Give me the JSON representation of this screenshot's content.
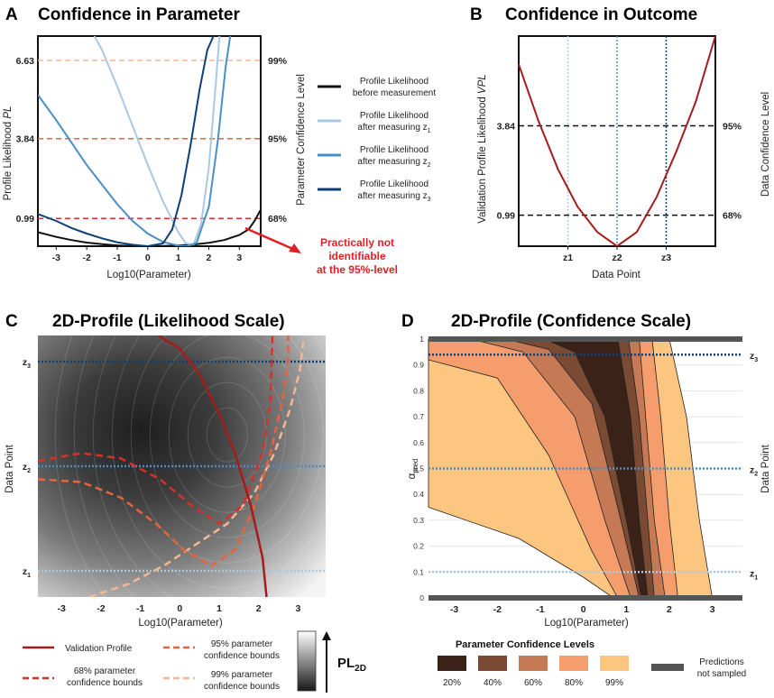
{
  "figure": {
    "width": 858,
    "height": 774
  },
  "panels": {
    "A": {
      "letter": "A",
      "title": "Confidence in Parameter",
      "ylabel": "Profile Likelihood ",
      "ylabel_italic": "PL",
      "ylabel_right": "Parameter Confidence Level",
      "xlabel": "Log10(Parameter)"
    },
    "B": {
      "letter": "B",
      "title": "Confidence in Outcome",
      "ylabel": "Validation Profile Likelihood ",
      "ylabel_italic": "VPL",
      "ylabel_right": "Data Confidence Level",
      "xlabel": "Data Point"
    },
    "C": {
      "letter": "C",
      "title": "2D-Profile (Likelihood Scale)",
      "ylabel": "Data Point",
      "xlabel": "Log10(Parameter)"
    },
    "D": {
      "letter": "D",
      "title": "2D-Profile (Confidence Scale)",
      "ylabel": "α",
      "ylabel_sub": "pred",
      "ylabel_right": "Data Point",
      "xlabel": "Log10(Parameter)"
    }
  },
  "annotation": {
    "line1": "Practically not",
    "line2": "identifiable",
    "line3": "at the 95%-level"
  },
  "legend_A": [
    {
      "line1": "Profile Likelihood",
      "line2": "before measurement",
      "sub": "",
      "color": "#111111"
    },
    {
      "line1": "Profile Likelihood",
      "line2": "after measuring z",
      "sub": "1",
      "color": "#a9c8e2"
    },
    {
      "line1": "Profile Likelihood",
      "line2": "after measuring z",
      "sub": "2",
      "color": "#4a8fc4"
    },
    {
      "line1": "Profile Likelihood",
      "line2": "after measuring z",
      "sub": "3",
      "color": "#0d3f78"
    }
  ],
  "legend_C": {
    "validation": "Validation Profile",
    "b68_line1": "68% parameter",
    "b68_line2": "confidence bounds",
    "b95_line1": "95% parameter",
    "b95_line2": "confidence bounds",
    "b99_line1": "99% parameter",
    "b99_line2": "confidence bounds",
    "pl": "PL",
    "pl_sub": "2D"
  },
  "legend_D": {
    "title": "Parameter Confidence Levels",
    "levels": [
      {
        "label": "20%",
        "color": "#3b2218"
      },
      {
        "label": "40%",
        "color": "#7a4a33"
      },
      {
        "label": "60%",
        "color": "#c57a55"
      },
      {
        "label": "80%",
        "color": "#f59d6c"
      },
      {
        "label": "99%",
        "color": "#fcc681"
      }
    ],
    "not_sampled_line1": "Predictions",
    "not_sampled_line2": "not sampled",
    "not_sampled_color": "#555555"
  },
  "chart_data": [
    {
      "panel": "A",
      "type": "line",
      "title": "Confidence in Parameter",
      "xlabel": "Log10(Parameter)",
      "ylabel": "Profile Likelihood PL",
      "xlim": [
        -3.6,
        3.7
      ],
      "ylim": [
        0,
        7.5
      ],
      "x_ticks": [
        -3,
        -2,
        -1,
        0,
        1,
        2,
        3
      ],
      "y_ticks": [
        0.99,
        3.84,
        6.63
      ],
      "y_tick_labels": [
        "0.99",
        "3.84",
        "6.63"
      ],
      "y_right_labels": [
        "68%",
        "95%",
        "99%"
      ],
      "thresholds": [
        {
          "y": 0.99,
          "color": "#d7302a"
        },
        {
          "y": 3.84,
          "color": "#e8633c"
        },
        {
          "y": 6.63,
          "color": "#f4b795"
        }
      ],
      "series": [
        {
          "name": "Profile Likelihood before measurement",
          "color": "#111111",
          "x": [
            -3.6,
            -3,
            -2.5,
            -2,
            -1.5,
            -1,
            -0.5,
            0,
            0.5,
            1,
            1.5,
            2,
            2.5,
            3,
            3.3,
            3.5,
            3.7
          ],
          "y": [
            0.5,
            0.33,
            0.22,
            0.13,
            0.07,
            0.03,
            0.01,
            0,
            0.01,
            0.03,
            0.06,
            0.12,
            0.22,
            0.4,
            0.6,
            0.9,
            1.3
          ]
        },
        {
          "name": "Profile Likelihood after measuring z1",
          "color": "#a9c8e2",
          "x": [
            -1.75,
            -1.5,
            -1,
            -0.5,
            0,
            0.5,
            1,
            1.25,
            1.5,
            1.75,
            2,
            2.2,
            2.35
          ],
          "y": [
            7.5,
            7.0,
            5.7,
            4.3,
            2.9,
            1.6,
            0.5,
            0.1,
            0.06,
            0.8,
            2.8,
            5.4,
            7.5
          ]
        },
        {
          "name": "Profile Likelihood after measuring z2",
          "color": "#4a8fc4",
          "x": [
            -3.6,
            -3,
            -2.5,
            -2,
            -1.5,
            -1,
            -0.5,
            0,
            0.5,
            1,
            1.3,
            1.6,
            2,
            2.3,
            2.55,
            2.7
          ],
          "y": [
            5.4,
            4.5,
            3.7,
            2.9,
            2.2,
            1.5,
            0.9,
            0.45,
            0.15,
            0.02,
            0.0,
            0.12,
            1.4,
            3.8,
            6.4,
            7.5
          ]
        },
        {
          "name": "Profile Likelihood after measuring z3",
          "color": "#0d3f78",
          "x": [
            -3.6,
            -3,
            -2.5,
            -2,
            -1.5,
            -1,
            -0.5,
            0,
            0.5,
            0.8,
            1.1,
            1.4,
            1.7,
            1.95,
            2.15
          ],
          "y": [
            1.15,
            0.9,
            0.65,
            0.45,
            0.28,
            0.14,
            0.05,
            0.0,
            0.1,
            0.6,
            1.8,
            3.6,
            5.6,
            7.0,
            7.5
          ]
        }
      ]
    },
    {
      "panel": "B",
      "type": "line",
      "title": "Confidence in Outcome",
      "xlabel": "Data Point",
      "ylabel": "Validation Profile Likelihood VPL",
      "xlim": [
        0,
        1
      ],
      "ylim": [
        0,
        6.7
      ],
      "x_ticks": [
        0.25,
        0.5,
        0.75
      ],
      "x_tick_labels": [
        "z1",
        "z2",
        "z3"
      ],
      "y_ticks": [
        0.99,
        3.84
      ],
      "y_tick_labels": [
        "0.99",
        "3.84"
      ],
      "y_right_labels": [
        "68%",
        "95%"
      ],
      "reference_lines": [
        {
          "x": 0.25,
          "color": "#a9c8e2"
        },
        {
          "x": 0.5,
          "color": "#4a8fc4"
        },
        {
          "x": 0.75,
          "color": "#0d3f78"
        }
      ],
      "series": [
        {
          "name": "Validation profile likelihood",
          "color": "#a51c1c",
          "x": [
            0,
            0.1,
            0.2,
            0.3,
            0.4,
            0.5,
            0.6,
            0.7,
            0.8,
            0.9,
            1.0
          ],
          "y": [
            5.8,
            4.0,
            2.45,
            1.25,
            0.45,
            0.0,
            0.45,
            1.55,
            3.0,
            4.6,
            6.7
          ]
        }
      ]
    },
    {
      "panel": "C",
      "type": "heatmap",
      "title": "2D-Profile (Likelihood Scale)",
      "xlabel": "Log10(Parameter)",
      "ylabel": "Data Point",
      "xlim": [
        -3.6,
        3.7
      ],
      "ylim": [
        0,
        1
      ],
      "x_ticks": [
        -3,
        -2,
        -1,
        0,
        1,
        2,
        3
      ],
      "y_ticks": [
        0.1,
        0.5,
        0.9
      ],
      "y_tick_labels": [
        "z1",
        "z2",
        "z3"
      ],
      "validation_profile": {
        "x": [
          -0.55,
          0,
          0.5,
          1.0,
          1.4,
          1.8,
          2.1,
          2.2
        ],
        "y": [
          1.0,
          0.95,
          0.85,
          0.7,
          0.55,
          0.35,
          0.15,
          0.0
        ]
      },
      "bounds_68": {
        "x": [
          -3.6,
          -2.5,
          -1.5,
          -0.5,
          0.3,
          1.0,
          1.6,
          2.1,
          2.3,
          2.35
        ],
        "y": [
          0.52,
          0.55,
          0.53,
          0.45,
          0.35,
          0.28,
          0.35,
          0.55,
          0.75,
          1.0
        ]
      },
      "bounds_95": {
        "x": [
          -3.6,
          -2.5,
          -1.5,
          -0.6,
          0.1,
          0.8,
          1.4,
          1.9,
          2.3,
          2.6,
          2.75,
          2.75
        ],
        "y": [
          0.45,
          0.44,
          0.38,
          0.28,
          0.18,
          0.12,
          0.18,
          0.35,
          0.55,
          0.75,
          0.9,
          1.0
        ]
      },
      "bounds_99": {
        "x": [
          -2.3,
          -1.3,
          -0.4,
          0.4,
          1.2,
          1.9,
          2.4,
          2.8,
          3.05,
          3.15
        ],
        "y": [
          0.0,
          0.05,
          0.12,
          0.2,
          0.28,
          0.4,
          0.55,
          0.72,
          0.87,
          1.0
        ]
      }
    },
    {
      "panel": "D",
      "type": "area",
      "title": "2D-Profile (Confidence Scale)",
      "xlabel": "Log10(Parameter)",
      "ylabel": "alpha_pred",
      "xlim": [
        -3.6,
        3.7
      ],
      "ylim": [
        0,
        1
      ],
      "x_ticks": [
        -3,
        -2,
        -1,
        0,
        1,
        2,
        3
      ],
      "y_ticks": [
        0,
        0.1,
        0.2,
        0.3,
        0.4,
        0.5,
        0.6,
        0.7,
        0.8,
        0.9,
        1
      ],
      "y_tick_labels": [
        "0",
        "0.1",
        "0.2",
        "0.3",
        "0.4",
        "0.5",
        "0.6",
        "0.7",
        "0.8",
        "0.9",
        "1"
      ],
      "reference_lines": [
        {
          "y": 0.94,
          "label": "z3",
          "color": "#0d3f78"
        },
        {
          "y": 0.5,
          "label": "z2",
          "color": "#4a8fc4"
        },
        {
          "y": 0.1,
          "label": "z1",
          "color": "#a9c8e2"
        }
      ],
      "bands": [
        {
          "level": "99%",
          "x": [
            -3.6,
            -1.5,
            0.0,
            0.7
          ],
          "y": [
            0.35,
            0.23,
            0.08,
            0.0
          ],
          "ux": [
            2.0,
            2.4,
            2.7,
            3.0
          ],
          "uy": [
            1.0,
            0.7,
            0.3,
            0.0
          ]
        },
        {
          "level": "80%",
          "x": [
            -3.6,
            -2.0,
            -0.8,
            0.2,
            0.8
          ],
          "y": [
            0.92,
            0.85,
            0.55,
            0.18,
            0.0
          ],
          "ux": [
            1.6,
            1.8,
            2.0,
            2.2
          ],
          "uy": [
            1.0,
            0.7,
            0.3,
            0.0
          ]
        },
        {
          "level": "60%",
          "x": [
            -2.6,
            -1.4,
            -0.2,
            0.5,
            1.1
          ],
          "y": [
            1.0,
            0.95,
            0.7,
            0.3,
            0.0
          ],
          "ux": [
            1.3,
            1.45,
            1.65,
            1.9
          ],
          "uy": [
            1.0,
            0.7,
            0.3,
            0.0
          ]
        },
        {
          "level": "40%",
          "x": [
            -1.8,
            -0.8,
            0.2,
            0.8,
            1.3
          ],
          "y": [
            1.0,
            0.96,
            0.75,
            0.35,
            0.0
          ],
          "ux": [
            1.05,
            1.3,
            1.5,
            1.65
          ],
          "uy": [
            1.0,
            0.7,
            0.3,
            0.0
          ]
        },
        {
          "level": "20%",
          "x": [
            -0.9,
            -0.2,
            0.5,
            1.0,
            1.35
          ],
          "y": [
            1.0,
            0.95,
            0.7,
            0.3,
            0.0
          ],
          "ux": [
            0.8,
            1.1,
            1.3,
            1.5
          ],
          "uy": [
            1.0,
            0.7,
            0.3,
            0.0
          ]
        }
      ]
    }
  ]
}
